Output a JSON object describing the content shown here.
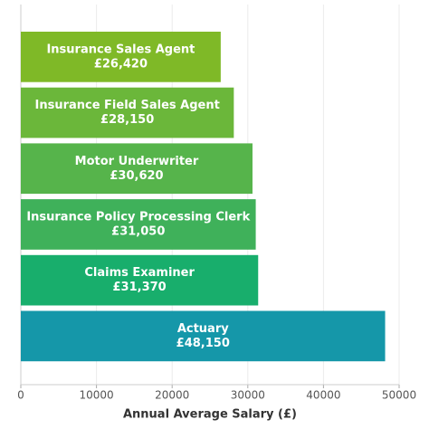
{
  "chart_data": {
    "type": "barh",
    "categories": [
      "Insurance Sales Agent",
      "Insurance Field Sales Agent",
      "Motor Underwriter",
      "Insurance Policy Processing Clerk",
      "Claims Examiner",
      "Actuary"
    ],
    "values": [
      26420,
      28150,
      30620,
      31050,
      31370,
      48150
    ],
    "value_labels": [
      "£26,420",
      "£28,150",
      "£30,620",
      "£31,050",
      "£31,370",
      "£48,150"
    ],
    "colors": [
      "#7fb927",
      "#6bb73a",
      "#56b44b",
      "#3fb15a",
      "#18ae6c",
      "#1597a9"
    ],
    "xlabel": "Annual Average Salary (£)",
    "xlim": [
      0,
      50000
    ],
    "xticks": [
      0,
      10000,
      20000,
      30000,
      40000,
      50000
    ],
    "grid": true
  }
}
